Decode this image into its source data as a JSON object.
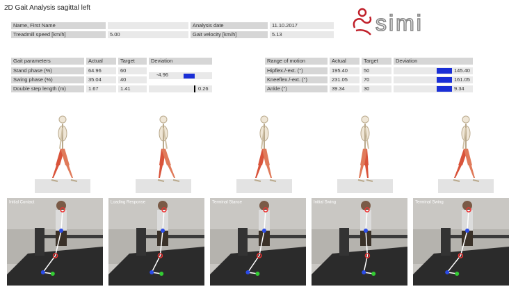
{
  "header": {
    "title": "2D Gait Analysis sagittal left",
    "logo": "simi"
  },
  "info": {
    "name_label": "Name, First Name",
    "date_label": "Analysis date",
    "date": "11.10.2017",
    "speed_label": "Treadmill speed [km/h]",
    "speed": "5.00",
    "velocity_label": "Gait velocity [km/h]",
    "velocity": "5.13"
  },
  "gait_parameters": {
    "headers": [
      "Gait parameters",
      "Actual",
      "Target",
      "Deviation"
    ],
    "rows": [
      {
        "label": "Stand phase (%)",
        "actual": "64.96",
        "target": "60",
        "deviation": "-4.96"
      },
      {
        "label": "Swing phase (%)",
        "actual": "35.04",
        "target": "40"
      },
      {
        "label": "Double step length (m)",
        "actual": "1.67",
        "target": "1.41",
        "deviation": "0.26"
      }
    ]
  },
  "range_of_motion": {
    "headers": [
      "Range of motion",
      "Actual",
      "Target",
      "Deviation"
    ],
    "rows": [
      {
        "label": "Hipflex./-ext. (°)",
        "actual": "195.40",
        "target": "50",
        "deviation": "145.40"
      },
      {
        "label": "Kneeflex./-ext. (°)",
        "actual": "231.05",
        "target": "70",
        "deviation": "161.05"
      },
      {
        "label": "Ankle (°)",
        "actual": "39.34",
        "target": "30",
        "deviation": "9.34"
      }
    ]
  },
  "phases": [
    "Initial Contact",
    "Loading Response",
    "Terminal Stance",
    "Initial Swing",
    "Terminal Swing"
  ]
}
